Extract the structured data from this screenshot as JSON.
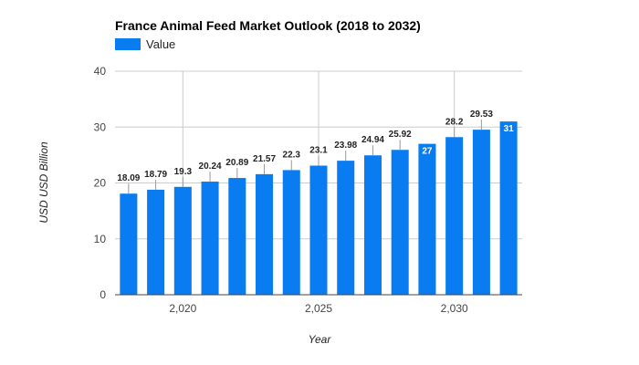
{
  "chart_data": {
    "type": "bar",
    "title": "France Animal Feed Market Outlook (2018 to 2032)",
    "xlabel": "Year",
    "ylabel": "USD USD Billion",
    "legend": {
      "position": "top-left",
      "entries": [
        "Value"
      ]
    },
    "series": [
      {
        "name": "Value",
        "color": "#0a7cf2",
        "x": [
          2018,
          2019,
          2020,
          2021,
          2022,
          2023,
          2024,
          2025,
          2026,
          2027,
          2028,
          2029,
          2030,
          2031,
          2032
        ],
        "values": [
          18.09,
          18.79,
          19.3,
          20.24,
          20.89,
          21.57,
          22.3,
          23.1,
          23.98,
          24.94,
          25.92,
          27,
          28.2,
          29.53,
          31
        ],
        "labels": [
          "18.09",
          "18.79",
          "19.3",
          "20.24",
          "20.89",
          "21.57",
          "22.3",
          "23.1",
          "23.98",
          "24.94",
          "25.92",
          "27",
          "28.2",
          "29.53",
          "31"
        ]
      }
    ],
    "ylim": [
      0,
      40
    ],
    "yticks": [
      0,
      10,
      20,
      30,
      40
    ],
    "xticks": [
      2020,
      2025,
      2030
    ],
    "xtick_labels": [
      "2,020",
      "2,025",
      "2,030"
    ],
    "grid": true
  }
}
